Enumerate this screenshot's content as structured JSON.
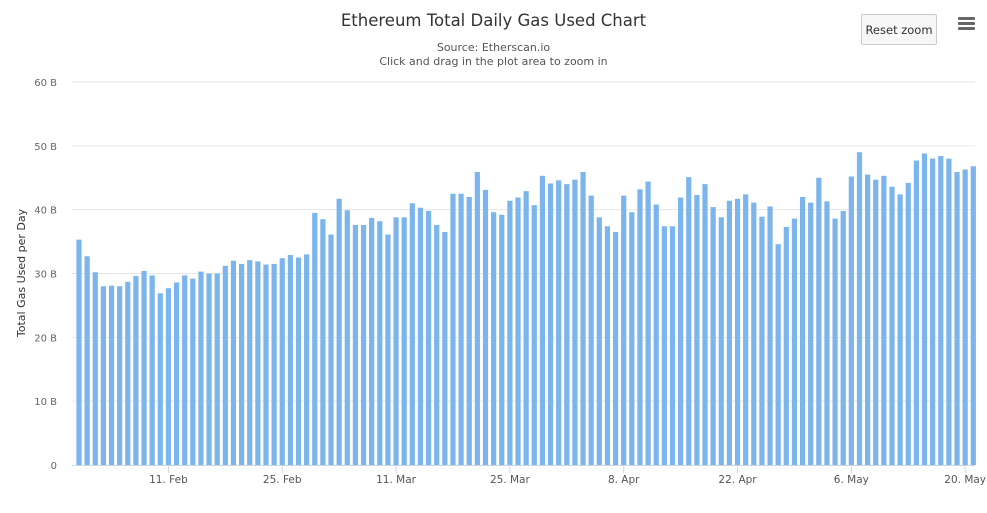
{
  "chart_data": {
    "type": "bar",
    "title": "Ethereum Total Daily Gas Used Chart",
    "subtitle": "Source: Etherscan.io",
    "hint": "Click and drag in the plot area to zoom in",
    "xlabel": "",
    "ylabel": "Total Gas Used per Day",
    "ylim": [
      0,
      60
    ],
    "y_unit": "B",
    "y_ticks": [
      "0",
      "10 B",
      "20 B",
      "30 B",
      "40 B",
      "50 B",
      "60 B"
    ],
    "x_start_date": "2021-01-31",
    "x_interval": "1 day",
    "x_ticks": [
      {
        "label": "11. Feb",
        "day_index": 11
      },
      {
        "label": "25. Feb",
        "day_index": 25
      },
      {
        "label": "11. Mar",
        "day_index": 39
      },
      {
        "label": "25. Mar",
        "day_index": 53
      },
      {
        "label": "8. Apr",
        "day_index": 67
      },
      {
        "label": "22. Apr",
        "day_index": 81
      },
      {
        "label": "6. May",
        "day_index": 95
      },
      {
        "label": "20. May",
        "day_index": 109
      }
    ],
    "grid": true,
    "legend": "none",
    "color": "#7cb5ec",
    "values": [
      35.3,
      32.7,
      30.2,
      28,
      28.1,
      28,
      28.7,
      29.6,
      30.4,
      29.7,
      26.9,
      27.7,
      28.6,
      29.7,
      29.2,
      30.3,
      30.0,
      30.0,
      31.2,
      32.0,
      31.5,
      32.1,
      31.9,
      31.4,
      31.5,
      32.4,
      32.9,
      32.5,
      33.0,
      39.5,
      38.5,
      36.1,
      41.7,
      39.9,
      37.6,
      37.6,
      38.7,
      38.2,
      36.1,
      38.8,
      38.8,
      41.0,
      40.3,
      39.8,
      37.6,
      36.5,
      42.5,
      42.5,
      42.0,
      45.9,
      43.1,
      39.6,
      39.2,
      41.4,
      41.9,
      42.9,
      40.7,
      45.3,
      44.1,
      44.6,
      44.0,
      44.7,
      45.9,
      42.2,
      38.8,
      37.4,
      36.5,
      42.2,
      39.6,
      43.2,
      44.4,
      40.8,
      37.4,
      37.4,
      41.9,
      45.1,
      42.3,
      44.0,
      40.4,
      38.8,
      41.4,
      41.7,
      42.4,
      41.1,
      38.9,
      40.5,
      34.6,
      37.3,
      38.6,
      42.0,
      41.1,
      45.0,
      41.3,
      38.6,
      39.8,
      45.2,
      49.0,
      45.5,
      44.7,
      45.3,
      43.6,
      42.4,
      44.2,
      47.7,
      48.8,
      48.0,
      48.4,
      48.0,
      45.9,
      46.3,
      46.8
    ]
  },
  "controls": {
    "reset_zoom": "Reset zoom",
    "menu_icon": "hamburger-menu-icon"
  }
}
